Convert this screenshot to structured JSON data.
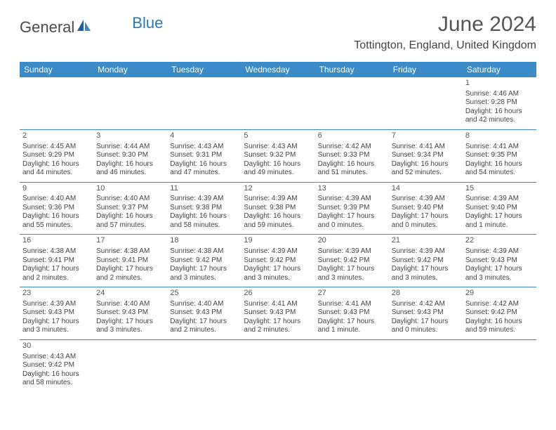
{
  "brand": {
    "part1": "General",
    "part2": "Blue"
  },
  "title": "June 2024",
  "location": "Tottington, England, United Kingdom",
  "colors": {
    "header_bg": "#3b8bc8",
    "header_text": "#ffffff",
    "row_border": "#3b8bc8",
    "text": "#444444",
    "title_text": "#555555",
    "brand_gray": "#4a4a4a",
    "brand_blue": "#2a7ab8",
    "background": "#ffffff"
  },
  "typography": {
    "title_fontsize": 30,
    "location_fontsize": 16,
    "header_fontsize": 12,
    "cell_fontsize": 10,
    "daynum_fontsize": 11,
    "logo_fontsize": 22
  },
  "calendar": {
    "type": "table",
    "columns": [
      "Sunday",
      "Monday",
      "Tuesday",
      "Wednesday",
      "Thursday",
      "Friday",
      "Saturday"
    ],
    "weeks": [
      [
        null,
        null,
        null,
        null,
        null,
        null,
        {
          "n": "1",
          "sr": "Sunrise: 4:46 AM",
          "ss": "Sunset: 9:28 PM",
          "dl": "Daylight: 16 hours and 42 minutes."
        }
      ],
      [
        {
          "n": "2",
          "sr": "Sunrise: 4:45 AM",
          "ss": "Sunset: 9:29 PM",
          "dl": "Daylight: 16 hours and 44 minutes."
        },
        {
          "n": "3",
          "sr": "Sunrise: 4:44 AM",
          "ss": "Sunset: 9:30 PM",
          "dl": "Daylight: 16 hours and 46 minutes."
        },
        {
          "n": "4",
          "sr": "Sunrise: 4:43 AM",
          "ss": "Sunset: 9:31 PM",
          "dl": "Daylight: 16 hours and 47 minutes."
        },
        {
          "n": "5",
          "sr": "Sunrise: 4:43 AM",
          "ss": "Sunset: 9:32 PM",
          "dl": "Daylight: 16 hours and 49 minutes."
        },
        {
          "n": "6",
          "sr": "Sunrise: 4:42 AM",
          "ss": "Sunset: 9:33 PM",
          "dl": "Daylight: 16 hours and 51 minutes."
        },
        {
          "n": "7",
          "sr": "Sunrise: 4:41 AM",
          "ss": "Sunset: 9:34 PM",
          "dl": "Daylight: 16 hours and 52 minutes."
        },
        {
          "n": "8",
          "sr": "Sunrise: 4:41 AM",
          "ss": "Sunset: 9:35 PM",
          "dl": "Daylight: 16 hours and 54 minutes."
        }
      ],
      [
        {
          "n": "9",
          "sr": "Sunrise: 4:40 AM",
          "ss": "Sunset: 9:36 PM",
          "dl": "Daylight: 16 hours and 55 minutes."
        },
        {
          "n": "10",
          "sr": "Sunrise: 4:40 AM",
          "ss": "Sunset: 9:37 PM",
          "dl": "Daylight: 16 hours and 57 minutes."
        },
        {
          "n": "11",
          "sr": "Sunrise: 4:39 AM",
          "ss": "Sunset: 9:38 PM",
          "dl": "Daylight: 16 hours and 58 minutes."
        },
        {
          "n": "12",
          "sr": "Sunrise: 4:39 AM",
          "ss": "Sunset: 9:38 PM",
          "dl": "Daylight: 16 hours and 59 minutes."
        },
        {
          "n": "13",
          "sr": "Sunrise: 4:39 AM",
          "ss": "Sunset: 9:39 PM",
          "dl": "Daylight: 17 hours and 0 minutes."
        },
        {
          "n": "14",
          "sr": "Sunrise: 4:39 AM",
          "ss": "Sunset: 9:40 PM",
          "dl": "Daylight: 17 hours and 0 minutes."
        },
        {
          "n": "15",
          "sr": "Sunrise: 4:39 AM",
          "ss": "Sunset: 9:40 PM",
          "dl": "Daylight: 17 hours and 1 minute."
        }
      ],
      [
        {
          "n": "16",
          "sr": "Sunrise: 4:38 AM",
          "ss": "Sunset: 9:41 PM",
          "dl": "Daylight: 17 hours and 2 minutes."
        },
        {
          "n": "17",
          "sr": "Sunrise: 4:38 AM",
          "ss": "Sunset: 9:41 PM",
          "dl": "Daylight: 17 hours and 2 minutes."
        },
        {
          "n": "18",
          "sr": "Sunrise: 4:38 AM",
          "ss": "Sunset: 9:42 PM",
          "dl": "Daylight: 17 hours and 3 minutes."
        },
        {
          "n": "19",
          "sr": "Sunrise: 4:39 AM",
          "ss": "Sunset: 9:42 PM",
          "dl": "Daylight: 17 hours and 3 minutes."
        },
        {
          "n": "20",
          "sr": "Sunrise: 4:39 AM",
          "ss": "Sunset: 9:42 PM",
          "dl": "Daylight: 17 hours and 3 minutes."
        },
        {
          "n": "21",
          "sr": "Sunrise: 4:39 AM",
          "ss": "Sunset: 9:42 PM",
          "dl": "Daylight: 17 hours and 3 minutes."
        },
        {
          "n": "22",
          "sr": "Sunrise: 4:39 AM",
          "ss": "Sunset: 9:43 PM",
          "dl": "Daylight: 17 hours and 3 minutes."
        }
      ],
      [
        {
          "n": "23",
          "sr": "Sunrise: 4:39 AM",
          "ss": "Sunset: 9:43 PM",
          "dl": "Daylight: 17 hours and 3 minutes."
        },
        {
          "n": "24",
          "sr": "Sunrise: 4:40 AM",
          "ss": "Sunset: 9:43 PM",
          "dl": "Daylight: 17 hours and 3 minutes."
        },
        {
          "n": "25",
          "sr": "Sunrise: 4:40 AM",
          "ss": "Sunset: 9:43 PM",
          "dl": "Daylight: 17 hours and 2 minutes."
        },
        {
          "n": "26",
          "sr": "Sunrise: 4:41 AM",
          "ss": "Sunset: 9:43 PM",
          "dl": "Daylight: 17 hours and 2 minutes."
        },
        {
          "n": "27",
          "sr": "Sunrise: 4:41 AM",
          "ss": "Sunset: 9:43 PM",
          "dl": "Daylight: 17 hours and 1 minute."
        },
        {
          "n": "28",
          "sr": "Sunrise: 4:42 AM",
          "ss": "Sunset: 9:43 PM",
          "dl": "Daylight: 17 hours and 0 minutes."
        },
        {
          "n": "29",
          "sr": "Sunrise: 4:42 AM",
          "ss": "Sunset: 9:42 PM",
          "dl": "Daylight: 16 hours and 59 minutes."
        }
      ],
      [
        {
          "n": "30",
          "sr": "Sunrise: 4:43 AM",
          "ss": "Sunset: 9:42 PM",
          "dl": "Daylight: 16 hours and 58 minutes."
        },
        null,
        null,
        null,
        null,
        null,
        null
      ]
    ]
  }
}
